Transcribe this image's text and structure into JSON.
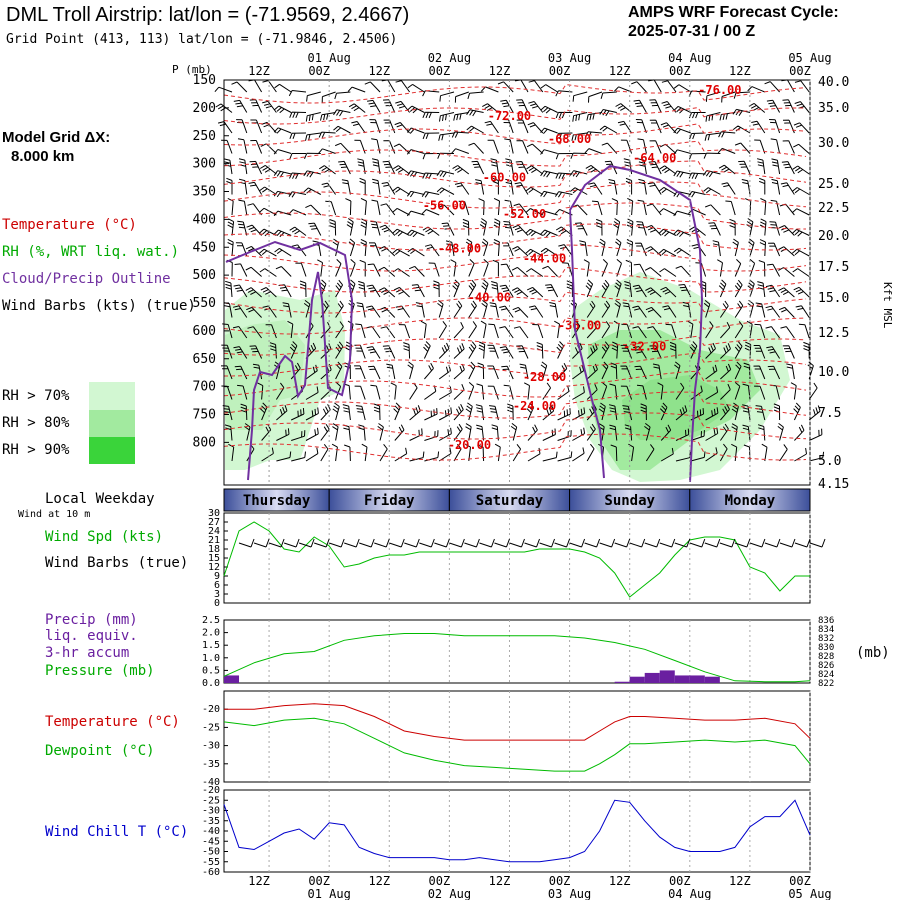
{
  "header": {
    "title": "DML Troll Airstrip:  lat/lon = (-71.9569, 2.4667)",
    "grid_point": "Grid Point (413, 113) lat/lon = (-71.9846, 2.4506)",
    "cycle_line1": "AMPS WRF Forecast Cycle:",
    "cycle_line2": "2025-07-31 / 00  Z"
  },
  "model_grid": {
    "line1": "Model Grid ΔX:",
    "line2": "8.000 km"
  },
  "legend_top": {
    "temperature": "Temperature (°C)",
    "rh": "RH (%, WRT liq. wat.)",
    "cloud": "Cloud/Precip Outline",
    "wind": "Wind Barbs (kts) (true)"
  },
  "rh_legend": [
    {
      "label": "RH > 70%",
      "color": "#d2f7d2"
    },
    {
      "label": "RH > 80%",
      "color": "#a2ea9f"
    },
    {
      "label": "RH > 90%",
      "color": "#3ad43a"
    }
  ],
  "colors": {
    "temperature": "#cc0000",
    "rh_text": "#00aa00",
    "cloud": "#7030a0",
    "dewpoint": "#00bb00",
    "windchill": "#0000cc",
    "precip": "#6a1fa0",
    "pressure": "#00bb00",
    "wind_speed": "#00bb00",
    "day_band": "#3c4f9a"
  },
  "time_axis": {
    "top_labels": [
      "12Z",
      "00Z",
      "12Z",
      "00Z",
      "12Z",
      "00Z",
      "12Z",
      "00Z",
      "12Z",
      "00Z"
    ],
    "date_labels": [
      "01 Aug",
      "02 Aug",
      "03 Aug",
      "04 Aug",
      "05 Aug"
    ],
    "bottom_labels": [
      "12Z",
      "00Z",
      "12Z",
      "00Z",
      "12Z",
      "00Z",
      "12Z",
      "00Z",
      "12Z",
      "00Z"
    ]
  },
  "weekday_label": "Local Weekday",
  "wind_at_10m": "Wind at 10 m",
  "weekdays": [
    "Thursday",
    "Friday",
    "Saturday",
    "Sunday",
    "Monday"
  ],
  "panel_wind": {
    "label1": "Wind Spd (kts)",
    "label2": "Wind Barbs (true)"
  },
  "panel_precip": {
    "label1": "Precip (mm)",
    "label2": "liq. equiv.",
    "label3": "3-hr accum",
    "label4": "Pressure (mb)",
    "right_unit": "(mb)"
  },
  "panel_temp": {
    "label1": "Temperature (°C)",
    "label2": "Dewpoint (°C)"
  },
  "panel_chill": {
    "label1": "Wind Chill T (°C)"
  },
  "chart_data": [
    {
      "type": "heatmap",
      "title": "",
      "left_axis_label": "P (mb)",
      "right_axis_label": "Kft MSL",
      "pressure_ticks": [
        150,
        200,
        250,
        300,
        350,
        400,
        450,
        500,
        550,
        600,
        650,
        700,
        750,
        800
      ],
      "height_ticks": [
        "40.0",
        "35.0",
        "30.0",
        "25.0",
        "22.5",
        "20.0",
        "17.5",
        "15.0",
        "12.5",
        "10.0",
        "7.5",
        "5.0",
        "4.15"
      ],
      "isotherm_labels": [
        {
          "text": "-76.00",
          "hour": 99,
          "p": 168
        },
        {
          "text": "-72.00",
          "hour": 57,
          "p": 215
        },
        {
          "text": "-68.00",
          "hour": 69,
          "p": 256
        },
        {
          "text": "-64.00",
          "hour": 86,
          "p": 290
        },
        {
          "text": "-60.00",
          "hour": 56,
          "p": 325
        },
        {
          "text": "-56.00",
          "hour": 44,
          "p": 375
        },
        {
          "text": "-52.00",
          "hour": 60,
          "p": 390
        },
        {
          "text": "-48.00",
          "hour": 47,
          "p": 452
        },
        {
          "text": "-44.00",
          "hour": 64,
          "p": 470
        },
        {
          "text": "-40.00",
          "hour": 53,
          "p": 540
        },
        {
          "text": "-36.00",
          "hour": 71,
          "p": 590
        },
        {
          "text": "-32.00",
          "hour": 84,
          "p": 628
        },
        {
          "text": "-28.00",
          "hour": 64,
          "p": 683
        },
        {
          "text": "-24.00",
          "hour": 62,
          "p": 735
        },
        {
          "text": "-20.00",
          "hour": 49,
          "p": 805
        }
      ]
    },
    {
      "type": "line",
      "title": "",
      "x_unit": "forecast hour",
      "ylim": [
        0,
        30
      ],
      "y_ticks": [
        30,
        27,
        24,
        21,
        18,
        15,
        12,
        9,
        6,
        3,
        0
      ],
      "series": [
        {
          "name": "Wind Spd (kts)",
          "x": [
            0,
            3,
            6,
            9,
            12,
            15,
            18,
            21,
            24,
            27,
            30,
            33,
            36,
            39,
            42,
            45,
            48,
            51,
            54,
            57,
            60,
            63,
            66,
            69,
            72,
            75,
            78,
            81,
            84,
            87,
            90,
            93,
            96,
            99,
            102,
            105,
            108,
            111,
            114,
            117
          ],
          "values": [
            9,
            24,
            27,
            24,
            18,
            17,
            22,
            19,
            12,
            13,
            15,
            16,
            16,
            17,
            17,
            17,
            17,
            17,
            17,
            17,
            17,
            18,
            18,
            18,
            17,
            15,
            10,
            2,
            6,
            10,
            16,
            21,
            22,
            22,
            21,
            12,
            10,
            4,
            9,
            9
          ]
        }
      ]
    },
    {
      "type": "bar",
      "title": "",
      "ylim": [
        0,
        2.5
      ],
      "y_ticks": [
        2.5,
        2.0,
        1.5,
        1.0,
        0.5,
        0.0
      ],
      "right_ticks": [
        836,
        834,
        832,
        830,
        828,
        826,
        824,
        822
      ],
      "precip": {
        "x": [
          0,
          78,
          81,
          84,
          87,
          90,
          93,
          96
        ],
        "values": [
          0.3,
          0.05,
          0.25,
          0.4,
          0.5,
          0.3,
          0.3,
          0.25
        ]
      },
      "series": [
        {
          "name": "Pressure (mb)",
          "x": [
            0,
            6,
            12,
            18,
            24,
            30,
            36,
            42,
            48,
            54,
            60,
            66,
            72,
            78,
            84,
            90,
            96,
            102,
            108,
            114,
            117
          ],
          "values": [
            823.5,
            826.5,
            828.5,
            829,
            831.5,
            832.5,
            833,
            833,
            832.5,
            832.5,
            832.5,
            832.5,
            832,
            831,
            829.5,
            827,
            824.5,
            822.5,
            822.3,
            822.3,
            822.5
          ]
        }
      ]
    },
    {
      "type": "line",
      "title": "",
      "ylim": [
        -40,
        -15
      ],
      "y_ticks": [
        -20,
        -25,
        -30,
        -35,
        -40
      ],
      "series": [
        {
          "name": "Temperature (°C)",
          "x": [
            0,
            6,
            12,
            18,
            24,
            30,
            36,
            42,
            48,
            54,
            60,
            66,
            72,
            75,
            78,
            81,
            84,
            90,
            96,
            102,
            108,
            114,
            117
          ],
          "values": [
            -20,
            -20,
            -19,
            -18.5,
            -19,
            -22,
            -26,
            -27.5,
            -28.5,
            -28.5,
            -28.5,
            -28.5,
            -28.5,
            -26,
            -23.5,
            -22,
            -22,
            -22.5,
            -23,
            -23,
            -22.5,
            -24,
            -28
          ]
        },
        {
          "name": "Dewpoint (°C)",
          "x": [
            0,
            6,
            12,
            18,
            24,
            30,
            36,
            42,
            48,
            54,
            60,
            66,
            72,
            75,
            78,
            81,
            84,
            90,
            96,
            102,
            108,
            114,
            117
          ],
          "values": [
            -23.5,
            -24.5,
            -23,
            -22.5,
            -24,
            -28,
            -32,
            -34,
            -35.5,
            -36,
            -36.5,
            -37,
            -37,
            -35,
            -32.5,
            -29.5,
            -29.5,
            -29,
            -28.5,
            -29,
            -28.5,
            -30,
            -35
          ]
        }
      ]
    },
    {
      "type": "line",
      "title": "",
      "ylim": [
        -60,
        -20
      ],
      "y_ticks": [
        -20,
        -25,
        -30,
        -35,
        -40,
        -45,
        -50,
        -55,
        -60
      ],
      "series": [
        {
          "name": "Wind Chill T (°C)",
          "x": [
            0,
            3,
            6,
            9,
            12,
            15,
            18,
            21,
            24,
            27,
            30,
            33,
            36,
            39,
            42,
            45,
            48,
            51,
            54,
            57,
            60,
            63,
            66,
            69,
            72,
            75,
            78,
            81,
            84,
            87,
            90,
            93,
            96,
            99,
            102,
            105,
            108,
            111,
            114,
            117
          ],
          "values": [
            -27,
            -48,
            -49,
            -45,
            -41,
            -39,
            -44,
            -36,
            -37,
            -48,
            -51,
            -53,
            -53,
            -53,
            -53,
            -54,
            -54,
            -53,
            -54,
            -55,
            -55,
            -55,
            -54,
            -53,
            -50,
            -40,
            -25,
            -26,
            -35,
            -43,
            -48,
            -50,
            -50,
            -50,
            -48,
            -38,
            -33,
            -33,
            -25,
            -42
          ]
        }
      ]
    }
  ]
}
